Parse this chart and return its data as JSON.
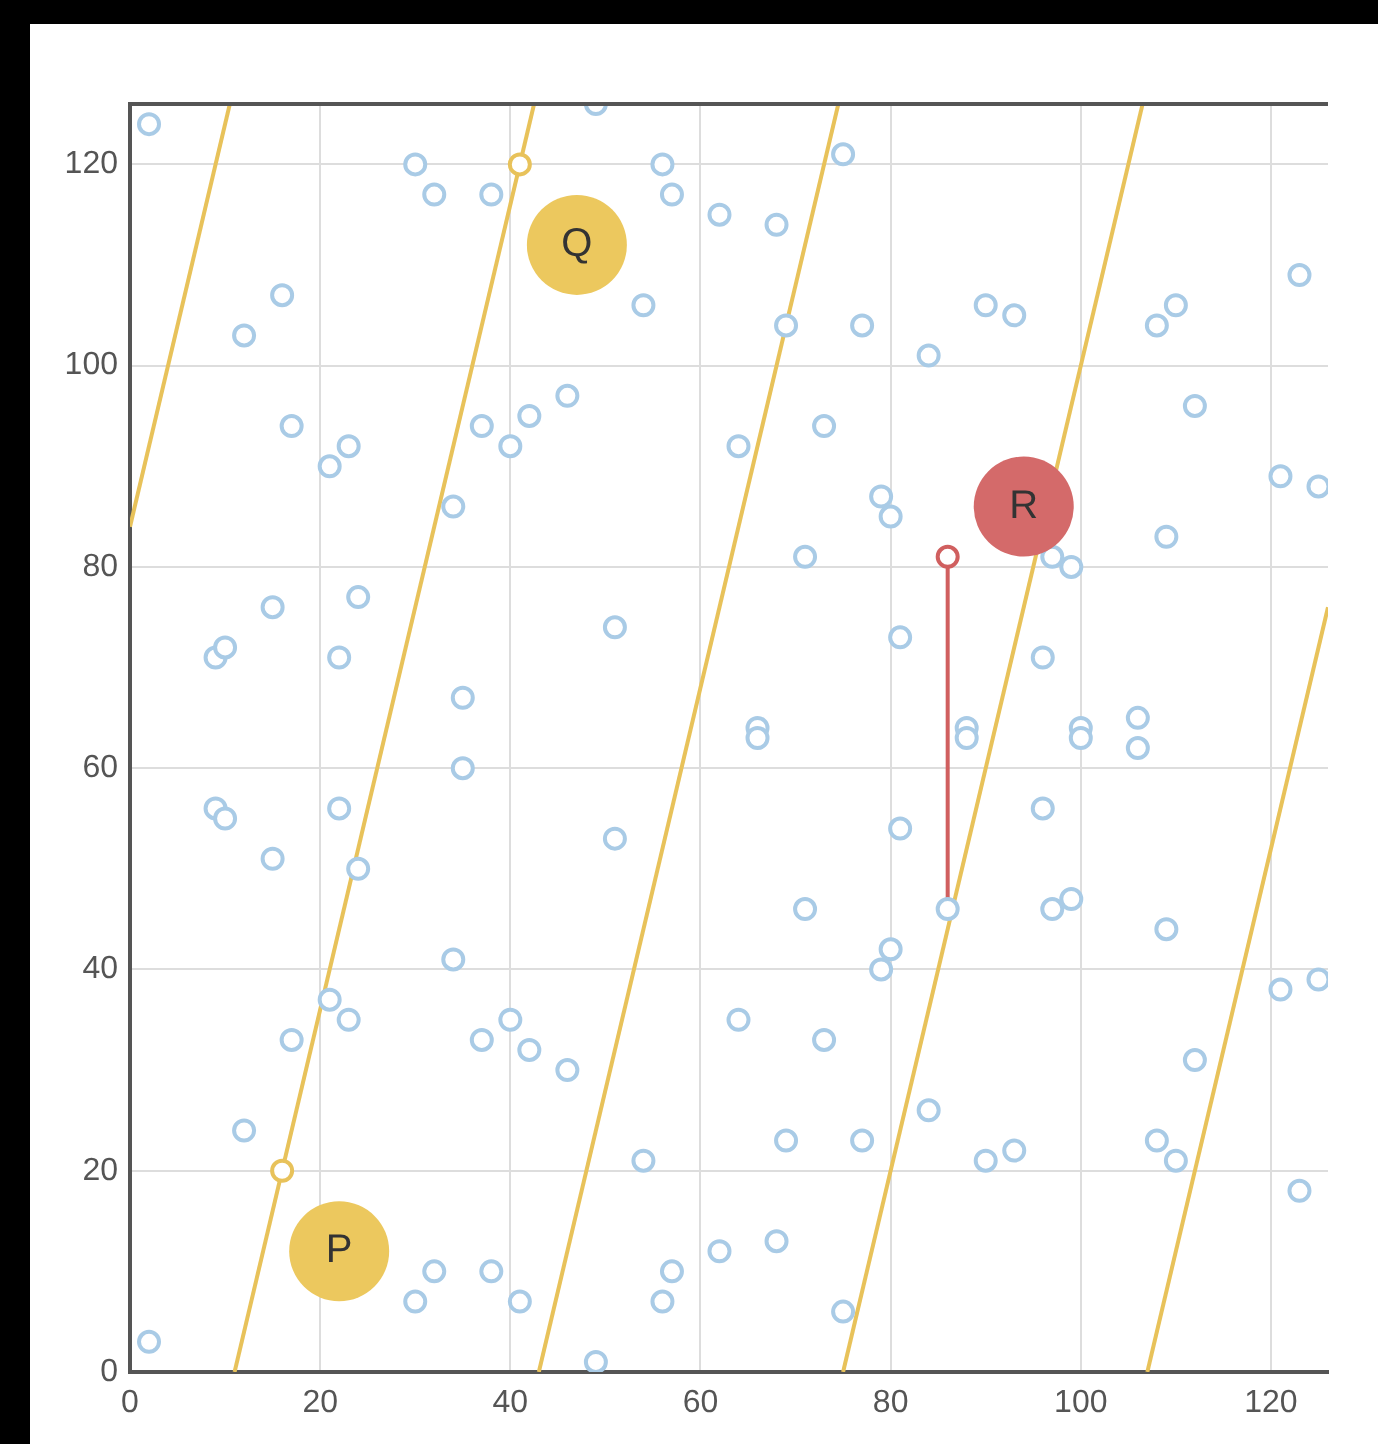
{
  "chart_data": {
    "type": "scatter",
    "xlim": [
      0,
      126
    ],
    "ylim": [
      0,
      126
    ],
    "xticks": [
      0,
      20,
      40,
      60,
      80,
      100,
      120
    ],
    "yticks": [
      0,
      20,
      40,
      60,
      80,
      100,
      120
    ],
    "grid": true,
    "legend": false,
    "marker": "circle",
    "series": [
      {
        "color": "#a9cbe6",
        "x": [
          2,
          12,
          16,
          17,
          21,
          23,
          34,
          9,
          10,
          15,
          22,
          24,
          30,
          32,
          38,
          49,
          56,
          57,
          62,
          68,
          54,
          46,
          42,
          37,
          40,
          51,
          35,
          35,
          9,
          10,
          15,
          22,
          24,
          51,
          34,
          21,
          23,
          17,
          37,
          40,
          42,
          46,
          12,
          54,
          32,
          30,
          38,
          41,
          57,
          56,
          2,
          49,
          75,
          123,
          90,
          93,
          108,
          110,
          84,
          69,
          77,
          112,
          73,
          64,
          121,
          125,
          79,
          80,
          109,
          71,
          97,
          99,
          81,
          96,
          66,
          66,
          88,
          88,
          100,
          100,
          106,
          106,
          96,
          81,
          71,
          86,
          97,
          99,
          109,
          80,
          79,
          121,
          125,
          64,
          73,
          112,
          84,
          69,
          77,
          90,
          93,
          108,
          110,
          123,
          62,
          68,
          75
        ],
        "values": [
          124,
          103,
          107,
          94,
          90,
          92,
          86,
          71,
          72,
          76,
          71,
          77,
          120,
          117,
          117,
          126,
          120,
          117,
          115,
          114,
          106,
          97,
          95,
          94,
          92,
          74,
          67,
          60,
          56,
          55,
          51,
          56,
          50,
          53,
          41,
          37,
          35,
          33,
          33,
          35,
          32,
          30,
          24,
          21,
          10,
          7,
          10,
          7,
          10,
          7,
          3,
          1,
          121,
          109,
          106,
          105,
          104,
          106,
          101,
          104,
          104,
          96,
          94,
          92,
          89,
          88,
          87,
          85,
          83,
          81,
          81,
          80,
          73,
          71,
          64,
          63,
          64,
          63,
          64,
          63,
          65,
          62,
          56,
          54,
          46,
          46,
          46,
          47,
          44,
          42,
          40,
          38,
          39,
          35,
          33,
          31,
          26,
          23,
          23,
          21,
          22,
          23,
          21,
          18,
          12,
          13,
          6
        ]
      },
      {
        "type": "line",
        "marker": "none",
        "color": "#e8c25a",
        "x": [
          0,
          10.5
        ],
        "values": [
          84,
          126
        ]
      },
      {
        "type": "line",
        "marker": "none",
        "color": "#e8c25a",
        "x": [
          11,
          42.5
        ],
        "values": [
          0,
          126
        ]
      },
      {
        "type": "line",
        "marker": "none",
        "color": "#e8c25a",
        "x": [
          43,
          74.5
        ],
        "values": [
          0,
          126
        ]
      },
      {
        "type": "line",
        "marker": "none",
        "color": "#e8c25a",
        "x": [
          75,
          106.5
        ],
        "values": [
          0,
          126
        ]
      },
      {
        "type": "line",
        "marker": "none",
        "color": "#e8c25a",
        "x": [
          107,
          126
        ],
        "values": [
          0,
          76
        ]
      },
      {
        "color": "#e8c25a",
        "x": [
          16,
          41
        ],
        "values": [
          20,
          120
        ]
      },
      {
        "type": "line",
        "marker": "none",
        "color": "#d05f5f",
        "x": [
          86,
          86
        ],
        "values": [
          46,
          81
        ]
      },
      {
        "color": "#d05f5f",
        "x": [
          86
        ],
        "values": [
          81
        ]
      },
      {
        "type": "bubble",
        "x": [
          22,
          47,
          94
        ],
        "values": [
          12,
          112,
          86
        ],
        "sizes": [
          1,
          1,
          1
        ],
        "colors": [
          "#ecc85e",
          "#ecc85e",
          "#d46a6a"
        ]
      }
    ],
    "annotations": [
      {
        "text": "P",
        "x": 22,
        "y": 12
      },
      {
        "text": "Q",
        "x": 47,
        "y": 112
      },
      {
        "text": "R",
        "x": 94,
        "y": 86
      }
    ]
  }
}
